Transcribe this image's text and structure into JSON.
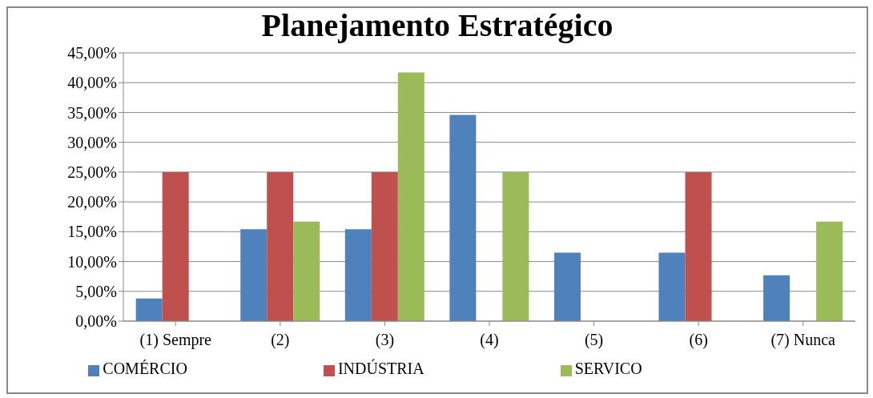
{
  "chart_data": {
    "type": "bar",
    "title": "Planejamento Estratégico",
    "categories": [
      "(1) Sempre",
      "(2)",
      "(3)",
      "(4)",
      "(5)",
      "(6)",
      "(7) Nunca"
    ],
    "series": [
      {
        "name": "COMÉRCIO",
        "color": "#4f81bd",
        "values": [
          3.8,
          15.4,
          15.4,
          34.6,
          11.5,
          11.5,
          7.7
        ]
      },
      {
        "name": "INDÚSTRIA",
        "color": "#c0504d",
        "values": [
          25,
          25,
          25,
          0,
          0,
          25,
          0
        ]
      },
      {
        "name": "SERVICO",
        "color": "#9bbb59",
        "values": [
          0,
          16.7,
          41.7,
          25,
          0,
          0,
          16.7
        ]
      }
    ],
    "ylim": [
      0,
      45
    ],
    "yticks": [
      {
        "value": 0,
        "label": "0,00%"
      },
      {
        "value": 5,
        "label": "5,00%"
      },
      {
        "value": 10,
        "label": "10,00%"
      },
      {
        "value": 15,
        "label": "15,00%"
      },
      {
        "value": 20,
        "label": "20,00%"
      },
      {
        "value": 25,
        "label": "25,00%"
      },
      {
        "value": 30,
        "label": "30,00%"
      },
      {
        "value": 35,
        "label": "35,00%"
      },
      {
        "value": 40,
        "label": "40,00%"
      },
      {
        "value": 45,
        "label": "45,00%"
      }
    ],
    "grid": "y",
    "legend": "bottom"
  }
}
